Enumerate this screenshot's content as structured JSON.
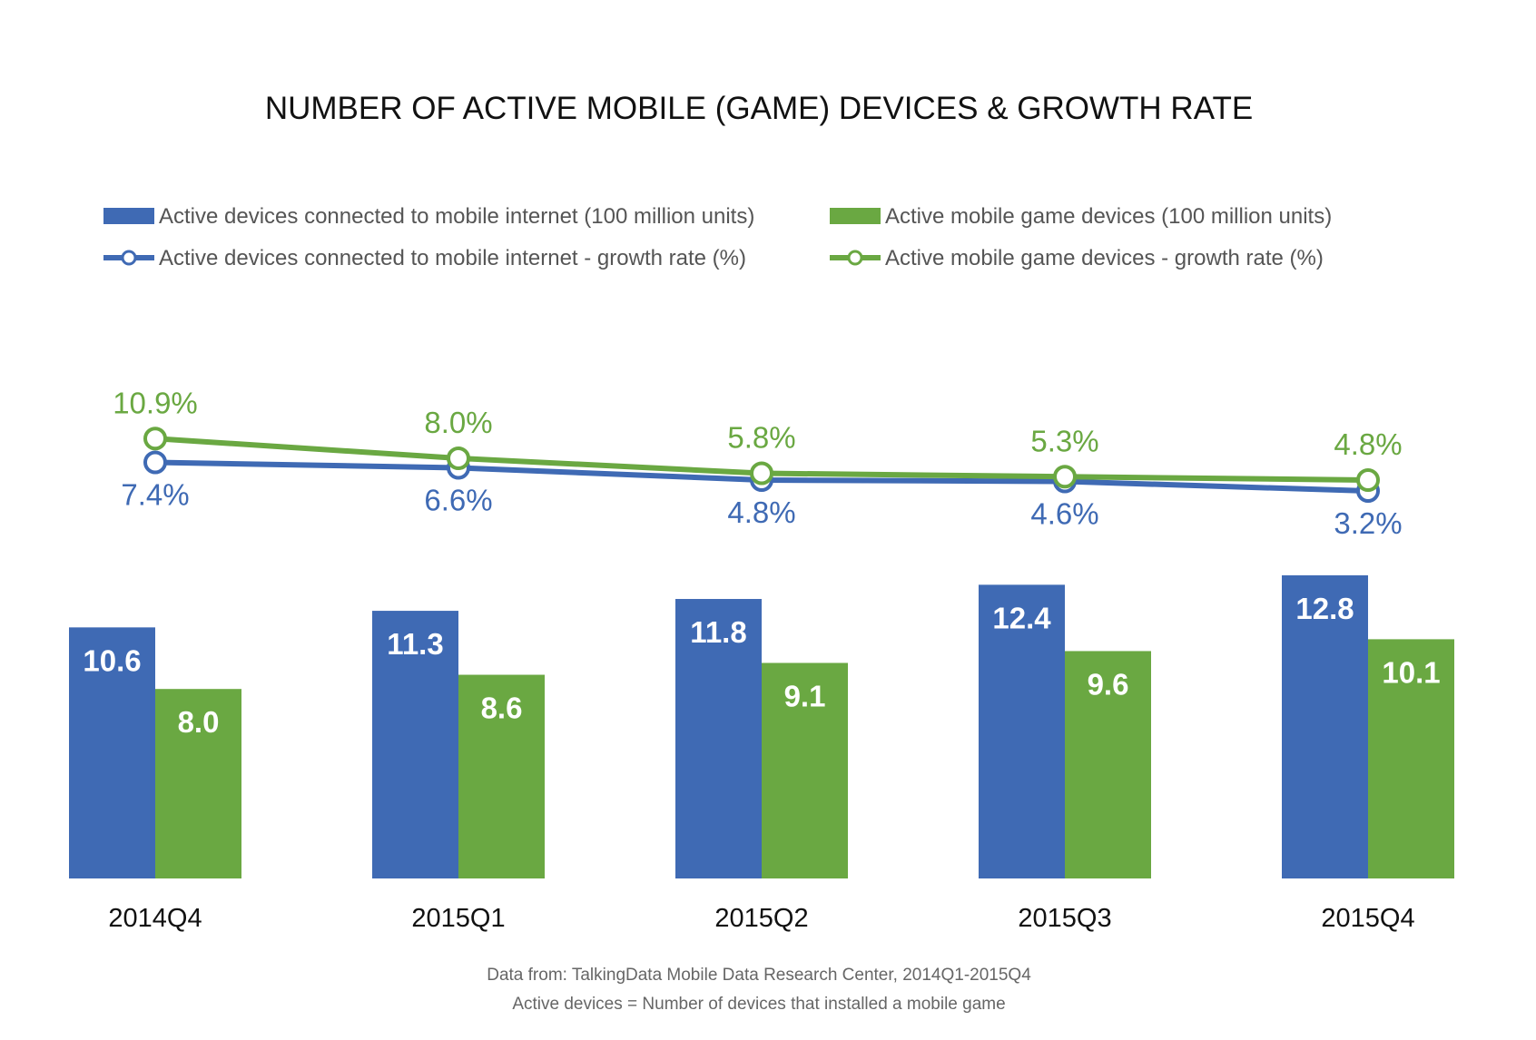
{
  "chart_data": {
    "type": "bar",
    "title": "NUMBER OF ACTIVE MOBILE (GAME) DEVICES & GROWTH RATE",
    "categories": [
      "2014Q4",
      "2015Q1",
      "2015Q2",
      "2015Q3",
      "2015Q4"
    ],
    "series": [
      {
        "name": "Active devices connected to mobile internet (100 million units)",
        "kind": "bar",
        "color": "#3f6ab4",
        "values": [
          10.6,
          11.3,
          11.8,
          12.4,
          12.8
        ],
        "labels": [
          "10.6",
          "11.3",
          "11.8",
          "12.4",
          "12.8"
        ]
      },
      {
        "name": "Active mobile game devices (100 million units)",
        "kind": "bar",
        "color": "#6aa842",
        "values": [
          8.0,
          8.6,
          9.1,
          9.6,
          10.1
        ],
        "labels": [
          "8.0",
          "8.6",
          "9.1",
          "9.6",
          "10.1"
        ]
      },
      {
        "name": "Active devices connected to mobile internet - growth rate (%)",
        "kind": "line",
        "color": "#3f6ab4",
        "values": [
          7.4,
          6.6,
          4.8,
          4.6,
          3.2
        ],
        "labels": [
          "7.4%",
          "6.6%",
          "4.8%",
          "4.6%",
          "3.2%"
        ]
      },
      {
        "name": "Active mobile game devices - growth rate (%)",
        "kind": "line",
        "color": "#6aa842",
        "values": [
          10.9,
          8.0,
          5.8,
          5.3,
          4.8
        ],
        "labels": [
          "10.9%",
          "8.0%",
          "5.8%",
          "5.3%",
          "4.8%"
        ]
      }
    ],
    "legend_position": "top",
    "grid": false,
    "notes": [
      "Data from: TalkingData Mobile Data Research Center, 2014Q1-2015Q4",
      "Active devices = Number of devices that installed a mobile game"
    ]
  }
}
